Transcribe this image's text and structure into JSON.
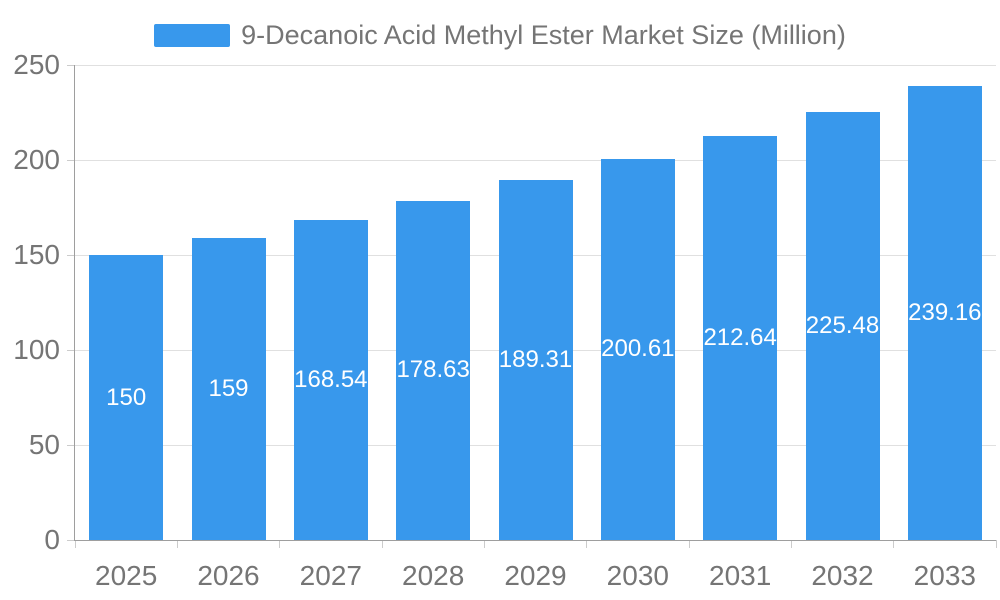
{
  "chart_data": {
    "type": "bar",
    "title": "9-Decanoic Acid Methyl Ester Market Size (Million)",
    "categories": [
      "2025",
      "2026",
      "2027",
      "2028",
      "2029",
      "2030",
      "2031",
      "2032",
      "2033"
    ],
    "values": [
      150,
      159,
      168.54,
      178.63,
      189.31,
      200.61,
      212.64,
      225.48,
      239.16
    ],
    "value_labels": [
      "150",
      "159",
      "168.54",
      "178.63",
      "189.31",
      "200.61",
      "212.64",
      "225.48",
      "239.16"
    ],
    "ylim": [
      0,
      250
    ],
    "yticks": [
      0,
      50,
      100,
      150,
      200,
      250
    ],
    "ytick_labels": [
      "0",
      "50",
      "100",
      "150",
      "200",
      "250"
    ],
    "grid": true,
    "legend_position": "top",
    "colors": {
      "bar": "#3898EC",
      "axis_line": "#9E9E9E",
      "gridline": "#E0E0E0",
      "tick": "#CCCCCC",
      "axis_text": "#757575",
      "value_label": "#FFFFFF",
      "background": "#FFFFFF"
    }
  }
}
